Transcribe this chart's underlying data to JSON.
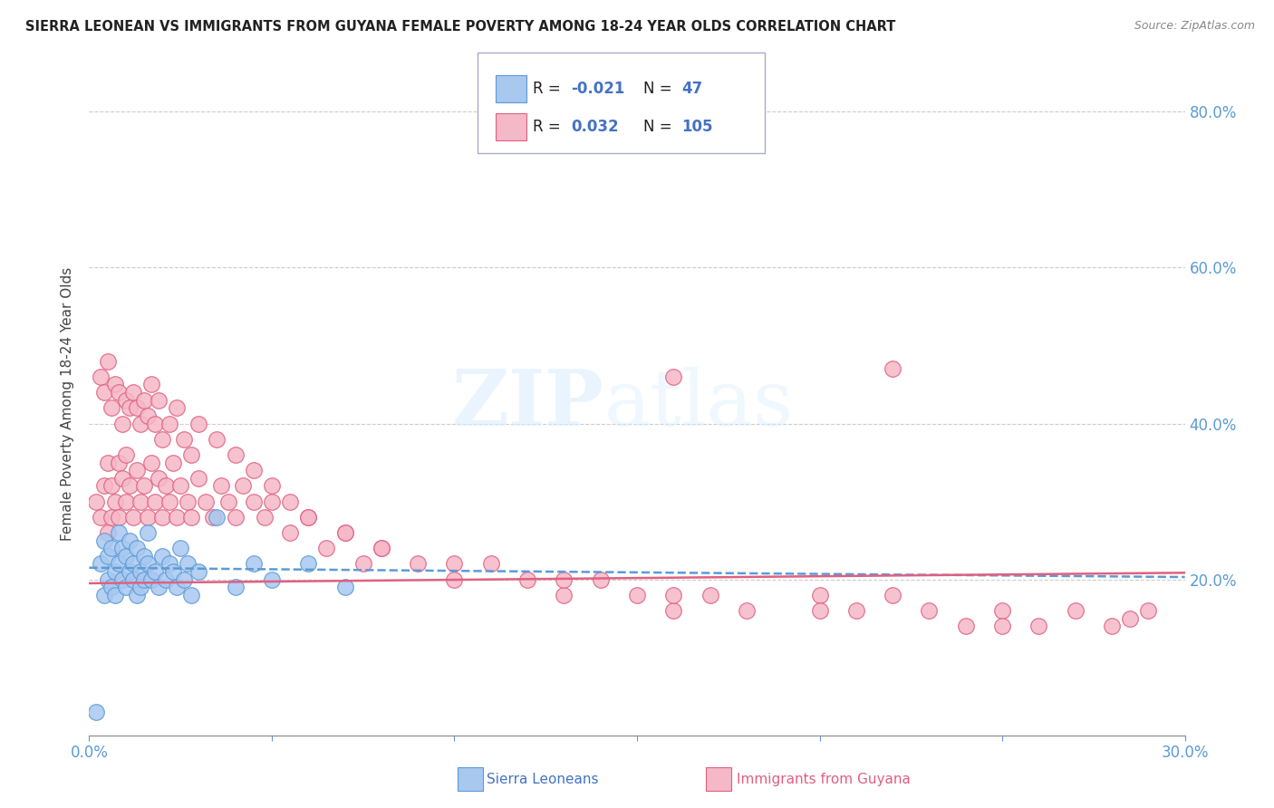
{
  "title": "SIERRA LEONEAN VS IMMIGRANTS FROM GUYANA FEMALE POVERTY AMONG 18-24 YEAR OLDS CORRELATION CHART",
  "source": "Source: ZipAtlas.com",
  "ylabel": "Female Poverty Among 18-24 Year Olds",
  "xlim": [
    0.0,
    0.3
  ],
  "ylim": [
    0.0,
    0.85
  ],
  "background_color": "#ffffff",
  "watermark_zip": "ZIP",
  "watermark_atlas": "atlas",
  "legend_R1": "-0.021",
  "legend_N1": "47",
  "legend_R2": "0.032",
  "legend_N2": "105",
  "series1_color": "#a8c8f0",
  "series2_color": "#f5b8c8",
  "series1_label": "Sierra Leoneans",
  "series2_label": "Immigrants from Guyana",
  "trend1_color": "#5b9bd5",
  "trend2_color": "#e06080",
  "trend1_slope": -0.04,
  "trend1_intercept": 0.215,
  "trend2_slope": 0.045,
  "trend2_intercept": 0.195,
  "sierra_x": [
    0.002,
    0.003,
    0.004,
    0.004,
    0.005,
    0.005,
    0.006,
    0.006,
    0.007,
    0.007,
    0.008,
    0.008,
    0.009,
    0.009,
    0.01,
    0.01,
    0.011,
    0.011,
    0.012,
    0.012,
    0.013,
    0.013,
    0.014,
    0.014,
    0.015,
    0.015,
    0.016,
    0.016,
    0.017,
    0.018,
    0.019,
    0.02,
    0.021,
    0.022,
    0.023,
    0.024,
    0.025,
    0.026,
    0.027,
    0.028,
    0.03,
    0.035,
    0.04,
    0.045,
    0.05,
    0.06,
    0.07
  ],
  "sierra_y": [
    0.03,
    0.22,
    0.18,
    0.25,
    0.2,
    0.23,
    0.19,
    0.24,
    0.21,
    0.18,
    0.22,
    0.26,
    0.2,
    0.24,
    0.19,
    0.23,
    0.21,
    0.25,
    0.2,
    0.22,
    0.18,
    0.24,
    0.21,
    0.19,
    0.23,
    0.2,
    0.22,
    0.26,
    0.2,
    0.21,
    0.19,
    0.23,
    0.2,
    0.22,
    0.21,
    0.19,
    0.24,
    0.2,
    0.22,
    0.18,
    0.21,
    0.28,
    0.19,
    0.22,
    0.2,
    0.22,
    0.19
  ],
  "guyana_x": [
    0.002,
    0.003,
    0.004,
    0.005,
    0.005,
    0.006,
    0.006,
    0.007,
    0.008,
    0.008,
    0.009,
    0.01,
    0.01,
    0.011,
    0.012,
    0.013,
    0.014,
    0.015,
    0.016,
    0.017,
    0.018,
    0.019,
    0.02,
    0.021,
    0.022,
    0.023,
    0.024,
    0.025,
    0.027,
    0.028,
    0.03,
    0.032,
    0.034,
    0.036,
    0.038,
    0.04,
    0.042,
    0.045,
    0.048,
    0.05,
    0.055,
    0.06,
    0.065,
    0.07,
    0.075,
    0.08,
    0.09,
    0.1,
    0.11,
    0.12,
    0.13,
    0.14,
    0.15,
    0.16,
    0.17,
    0.18,
    0.2,
    0.21,
    0.22,
    0.23,
    0.24,
    0.25,
    0.26,
    0.27,
    0.28,
    0.29,
    0.003,
    0.004,
    0.005,
    0.006,
    0.007,
    0.008,
    0.009,
    0.01,
    0.011,
    0.012,
    0.013,
    0.014,
    0.015,
    0.016,
    0.017,
    0.018,
    0.019,
    0.02,
    0.022,
    0.024,
    0.026,
    0.028,
    0.03,
    0.035,
    0.04,
    0.045,
    0.05,
    0.055,
    0.06,
    0.07,
    0.08,
    0.1,
    0.13,
    0.16,
    0.2,
    0.25,
    0.16,
    0.22,
    0.285
  ],
  "guyana_y": [
    0.3,
    0.28,
    0.32,
    0.35,
    0.26,
    0.32,
    0.28,
    0.3,
    0.35,
    0.28,
    0.33,
    0.3,
    0.36,
    0.32,
    0.28,
    0.34,
    0.3,
    0.32,
    0.28,
    0.35,
    0.3,
    0.33,
    0.28,
    0.32,
    0.3,
    0.35,
    0.28,
    0.32,
    0.3,
    0.28,
    0.33,
    0.3,
    0.28,
    0.32,
    0.3,
    0.28,
    0.32,
    0.3,
    0.28,
    0.3,
    0.26,
    0.28,
    0.24,
    0.26,
    0.22,
    0.24,
    0.22,
    0.2,
    0.22,
    0.2,
    0.18,
    0.2,
    0.18,
    0.16,
    0.18,
    0.16,
    0.18,
    0.16,
    0.18,
    0.16,
    0.14,
    0.16,
    0.14,
    0.16,
    0.14,
    0.16,
    0.46,
    0.44,
    0.48,
    0.42,
    0.45,
    0.44,
    0.4,
    0.43,
    0.42,
    0.44,
    0.42,
    0.4,
    0.43,
    0.41,
    0.45,
    0.4,
    0.43,
    0.38,
    0.4,
    0.42,
    0.38,
    0.36,
    0.4,
    0.38,
    0.36,
    0.34,
    0.32,
    0.3,
    0.28,
    0.26,
    0.24,
    0.22,
    0.2,
    0.18,
    0.16,
    0.14,
    0.46,
    0.47,
    0.15
  ]
}
